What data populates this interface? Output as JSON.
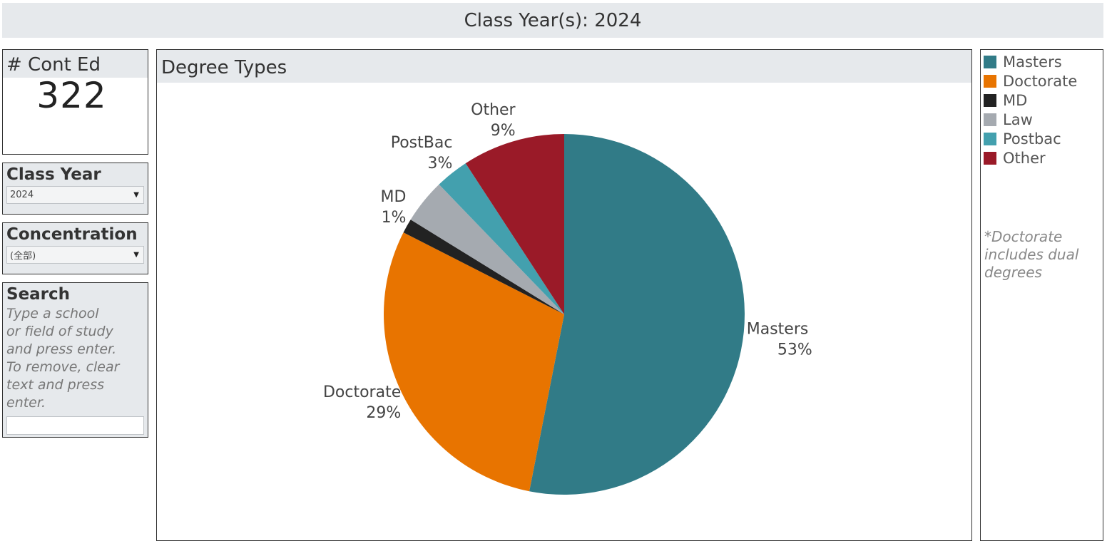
{
  "header": {
    "title": "Class Year(s): 2024"
  },
  "kpi": {
    "label": "# Cont Ed",
    "value": "322"
  },
  "filters": {
    "class_year": {
      "label": "Class Year",
      "selected": "2024"
    },
    "concentration": {
      "label": "Concentration",
      "selected": "(全部)"
    },
    "search": {
      "label": "Search",
      "help": "Type a school\nor field of study\nand  press enter.\nTo remove, clear\ntext  and press\nenter.",
      "value": ""
    }
  },
  "chart_data": {
    "type": "pie",
    "title": "Degree Types",
    "slices": [
      {
        "name": "Masters",
        "percent_label": "53%",
        "value": 53.1,
        "color": "#317b87"
      },
      {
        "name": "Doctorate",
        "percent_label": "29%",
        "value": 29.4,
        "color": "#e87400"
      },
      {
        "name": "MD",
        "percent_label": "1%",
        "value": 1.3,
        "color": "#222222"
      },
      {
        "name": "Law",
        "percent_label": "",
        "value": 4.0,
        "color": "#a5aab0"
      },
      {
        "name": "PostBac",
        "percent_label": "3%",
        "value": 3.0,
        "color": "#43a0ae"
      },
      {
        "name": "Other",
        "percent_label": "9%",
        "value": 9.2,
        "color": "#9a1a28"
      }
    ]
  },
  "legend": {
    "items": [
      {
        "label": "Masters",
        "color": "#317b87"
      },
      {
        "label": "Doctorate",
        "color": "#e87400"
      },
      {
        "label": "MD",
        "color": "#222222"
      },
      {
        "label": "Law",
        "color": "#a5aab0"
      },
      {
        "label": "Postbac",
        "color": "#43a0ae"
      },
      {
        "label": "Other",
        "color": "#9a1a28"
      }
    ],
    "note": "*Doctorate\nincludes dual\ndegrees"
  }
}
